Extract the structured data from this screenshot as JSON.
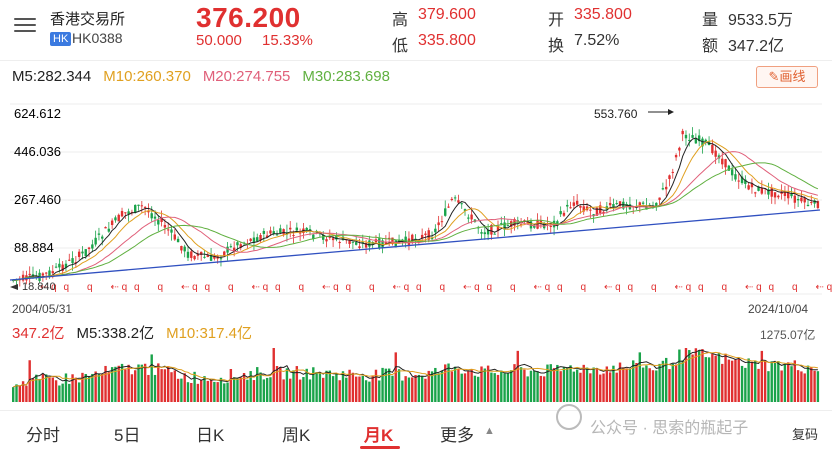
{
  "header": {
    "stock_name": "香港交易所",
    "badge": "HK",
    "code": "HK0388",
    "price": "376.200",
    "change": "50.000",
    "change_pct": "15.33%",
    "high_label": "高",
    "high_value": "379.600",
    "low_label": "低",
    "low_value": "335.800",
    "open_label": "开",
    "open_value": "335.800",
    "turnover_label": "换",
    "turnover_value": "7.52%",
    "volume_label": "量",
    "volume_value": "9533.5万",
    "amount_label": "额",
    "amount_value": "347.2亿"
  },
  "ma_bar": {
    "m5": "M5:282.344",
    "m10": "M10:260.370",
    "m20": "M20:274.755",
    "m30": "M30:283.698"
  },
  "draw_button": "✎画线",
  "chart": {
    "y_labels": [
      "624.612",
      "446.036",
      "267.460",
      "88.884"
    ],
    "peak_label": "553.760",
    "low_label": "18.840",
    "date_start": "2004/05/31",
    "date_end": "2024/10/04"
  },
  "volume_bar": {
    "amount": "347.2亿",
    "m5": "M5:338.2亿",
    "m10": "M10:317.4亿",
    "max_label": "1275.07亿"
  },
  "tabs": [
    "分时",
    "5日",
    "日K",
    "周K",
    "月K",
    "更多"
  ],
  "active_tab": "月K",
  "watermark": "公众号 · 思索的瓶起子",
  "fq_label": "复码",
  "colors": {
    "up": "#e03030",
    "down": "#1aa34a",
    "m5": "#222222",
    "m10": "#e0a020",
    "m20": "#e0607a",
    "m30": "#60b040"
  }
}
